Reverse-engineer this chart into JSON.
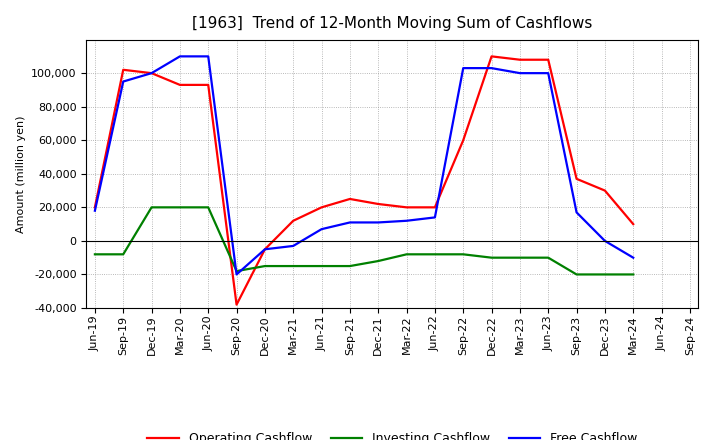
{
  "title": "[1963]  Trend of 12-Month Moving Sum of Cashflows",
  "ylabel": "Amount (million yen)",
  "xlabels": [
    "Jun-19",
    "Sep-19",
    "Dec-19",
    "Mar-20",
    "Jun-20",
    "Sep-20",
    "Dec-20",
    "Mar-21",
    "Jun-21",
    "Sep-21",
    "Dec-21",
    "Mar-22",
    "Jun-22",
    "Sep-22",
    "Dec-22",
    "Mar-23",
    "Jun-23",
    "Sep-23",
    "Dec-23",
    "Mar-24",
    "Jun-24",
    "Sep-24"
  ],
  "operating_cashflow": [
    20000,
    102000,
    100000,
    93000,
    93000,
    -38000,
    -5000,
    12000,
    20000,
    25000,
    22000,
    20000,
    20000,
    60000,
    110000,
    108000,
    108000,
    37000,
    30000,
    10000,
    null,
    null
  ],
  "investing_cashflow": [
    -8000,
    -8000,
    20000,
    20000,
    20000,
    -18000,
    -15000,
    -15000,
    -15000,
    -15000,
    -12000,
    -8000,
    -8000,
    -8000,
    -10000,
    -10000,
    -10000,
    -20000,
    -20000,
    -20000,
    null,
    null
  ],
  "free_cashflow": [
    18000,
    95000,
    100000,
    110000,
    110000,
    -20000,
    -5000,
    -3000,
    7000,
    11000,
    11000,
    12000,
    14000,
    103000,
    103000,
    100000,
    100000,
    17000,
    0,
    -10000,
    null,
    null
  ],
  "ylim": [
    -40000,
    120000
  ],
  "yticks": [
    -40000,
    -20000,
    0,
    20000,
    40000,
    60000,
    80000,
    100000
  ],
  "operating_color": "#FF0000",
  "investing_color": "#008000",
  "free_color": "#0000FF",
  "background_color": "#FFFFFF",
  "grid_color": "#999999",
  "title_fontsize": 11,
  "axis_fontsize": 8,
  "legend_fontsize": 9
}
